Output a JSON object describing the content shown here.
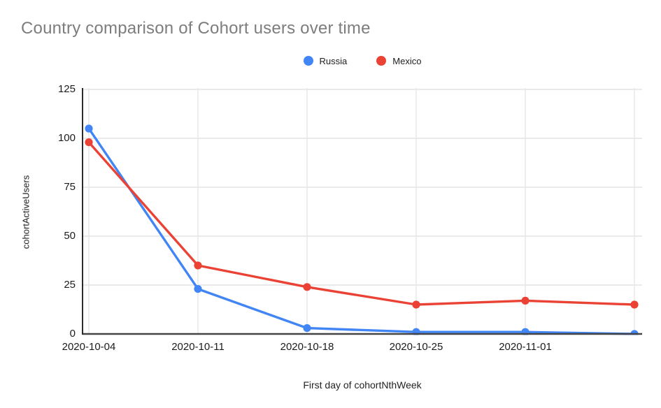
{
  "title": "Country comparison of Cohort users over time",
  "title_color": "#7d7d7d",
  "legend": {
    "items": [
      {
        "label": "Russia",
        "color": "#4285F4"
      },
      {
        "label": "Mexico",
        "color": "#EA4335"
      }
    ]
  },
  "chart_data": {
    "type": "line",
    "title": "Country comparison of Cohort users over time",
    "xlabel": "First day of cohortNthWeek",
    "ylabel": "cohortActiveUsers",
    "x_tick_labels": [
      "2020-10-04",
      "2020-10-11",
      "2020-10-18",
      "2020-10-25",
      "2020-11-01"
    ],
    "num_points": 6,
    "series": [
      {
        "name": "Russia",
        "color": "#4285F4",
        "values": [
          105,
          23,
          3,
          1,
          1,
          0
        ]
      },
      {
        "name": "Mexico",
        "color": "#EA4335",
        "values": [
          98,
          35,
          24,
          15,
          17,
          15
        ]
      }
    ],
    "ylim": [
      0,
      125
    ],
    "y_ticks": [
      0,
      25,
      50,
      75,
      100,
      125
    ],
    "grid": true,
    "legend_position": "top",
    "marker": "circle"
  }
}
